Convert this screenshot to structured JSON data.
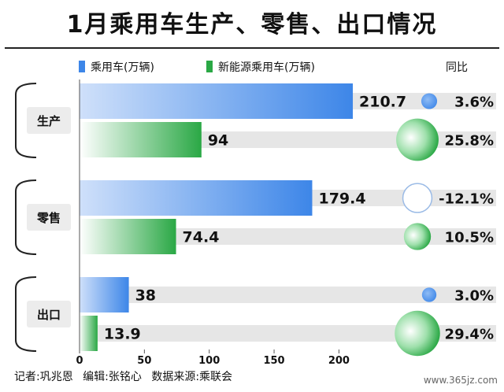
{
  "chart_data": {
    "type": "bar",
    "title": "1月乘用车生产、零售、出口情况",
    "categories": [
      "生产",
      "零售",
      "出口"
    ],
    "series": [
      {
        "name": "乘用车(万辆)",
        "values": [
          210.7,
          179.4,
          38
        ],
        "yoy": [
          "3.6%",
          "-12.1%",
          "3.0%"
        ],
        "color": "#3d86e8"
      },
      {
        "name": "新能源乘用车(万辆)",
        "values": [
          94,
          74.4,
          13.9
        ],
        "yoy": [
          "25.8%",
          "10.5%",
          "29.4%"
        ],
        "color": "#2aa845"
      }
    ],
    "yoy_values": [
      [
        3.6,
        -12.1,
        3.0
      ],
      [
        25.8,
        10.5,
        29.4
      ]
    ],
    "yoy_label": "同比",
    "xticks": [
      "0",
      "50",
      "100",
      "150",
      "200"
    ],
    "xlim": [
      0,
      240
    ],
    "legend_position": "top-left"
  },
  "footer": "记者:巩兆恩  编辑:张铭心  数据来源:乘联会",
  "watermark": "www.365jz.com"
}
